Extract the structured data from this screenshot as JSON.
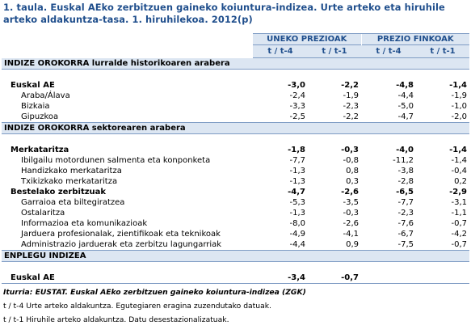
{
  "title": "1. taula. Euskal AEko zerbitzuen gaineko koiuntura-indizea. Urte arteko eta hiruhile arteko aldakuntza-tasa. 1. hiruhilekoa. 2012(p)",
  "headers": {
    "group1": "UNEKO PREZIOAK",
    "group2": "PREZIO FINKOAK",
    "sub": [
      "t / t-4",
      "t / t-1",
      "t / t-4",
      "t / t-1"
    ]
  },
  "sections": [
    {
      "label": "INDIZE OROKORRA lurralde historikoaren arabera",
      "rows": [
        {
          "label": "Euskal AE",
          "level": 1,
          "bold": true,
          "v": [
            "-3,0",
            "-2,2",
            "-4,8",
            "-1,4"
          ]
        },
        {
          "label": "Araba/Álava",
          "level": 2,
          "bold": false,
          "v": [
            "-2,4",
            "-1,9",
            "-4,4",
            "-1,9"
          ]
        },
        {
          "label": "Bizkaia",
          "level": 2,
          "bold": false,
          "v": [
            "-3,3",
            "-2,3",
            "-5,0",
            "-1,0"
          ]
        },
        {
          "label": "Gipuzkoa",
          "level": 2,
          "bold": false,
          "v": [
            "-2,5",
            "-2,2",
            "-4,7",
            "-2,0"
          ]
        }
      ]
    },
    {
      "label": "INDIZE OROKORRA sektorearen arabera",
      "rows": [
        {
          "label": "Merkataritza",
          "level": 1,
          "bold": true,
          "v": [
            "-1,8",
            "-0,3",
            "-4,0",
            "-1,4"
          ]
        },
        {
          "label": "Ibilgailu motordunen salmenta eta konponketa",
          "level": 2,
          "bold": false,
          "v": [
            "-7,7",
            "-0,8",
            "-11,2",
            "-1,4"
          ]
        },
        {
          "label": "Handizkako merkataritza",
          "level": 2,
          "bold": false,
          "v": [
            "-1,3",
            "0,8",
            "-3,8",
            "-0,4"
          ]
        },
        {
          "label": "Txikizkako merkataritza",
          "level": 2,
          "bold": false,
          "v": [
            "-1,3",
            "0,3",
            "-2,8",
            "0,2"
          ]
        },
        {
          "label": "Bestelako zerbitzuak",
          "level": 1,
          "bold": true,
          "v": [
            "-4,7",
            "-2,6",
            "-6,5",
            "-2,9"
          ]
        },
        {
          "label": "Garraioa eta biltegiratzea",
          "level": 2,
          "bold": false,
          "v": [
            "-5,3",
            "-3,5",
            "-7,7",
            "-3,1"
          ]
        },
        {
          "label": "Ostalaritza",
          "level": 2,
          "bold": false,
          "v": [
            "-1,3",
            "-0,3",
            "-2,3",
            "-1,1"
          ]
        },
        {
          "label": "Informazioa eta komunikazioak",
          "level": 2,
          "bold": false,
          "v": [
            "-8,0",
            "-2,6",
            "-7,6",
            "-0,7"
          ]
        },
        {
          "label": "Jarduera profesionalak, zientifikoak eta teknikoak",
          "level": 2,
          "bold": false,
          "v": [
            "-4,9",
            "-4,1",
            "-6,7",
            "-4,2"
          ]
        },
        {
          "label": "Administrazio jarduerak eta zerbitzu lagungarriak",
          "level": 2,
          "bold": false,
          "v": [
            "-4,4",
            "0,9",
            "-7,5",
            "-0,7"
          ]
        }
      ]
    },
    {
      "label": "ENPLEGU INDIZEA",
      "rows": [
        {
          "label": "Euskal AE",
          "level": 1,
          "bold": true,
          "v": [
            "-3,4",
            "-0,7",
            "",
            ""
          ]
        }
      ]
    }
  ],
  "notes": {
    "source": "Iturria: EUSTAT. Euskal AEko zerbitzuen gaineko koiuntura-indizea (ZGK)",
    "note1": "t / t-4 Urte arteko aldakuntza. Egutegiaren eragina zuzendutako datuak.",
    "note2": "t / t-1 Hiruhile arteko aldakuntza. Datu desestazionalizatuak."
  }
}
